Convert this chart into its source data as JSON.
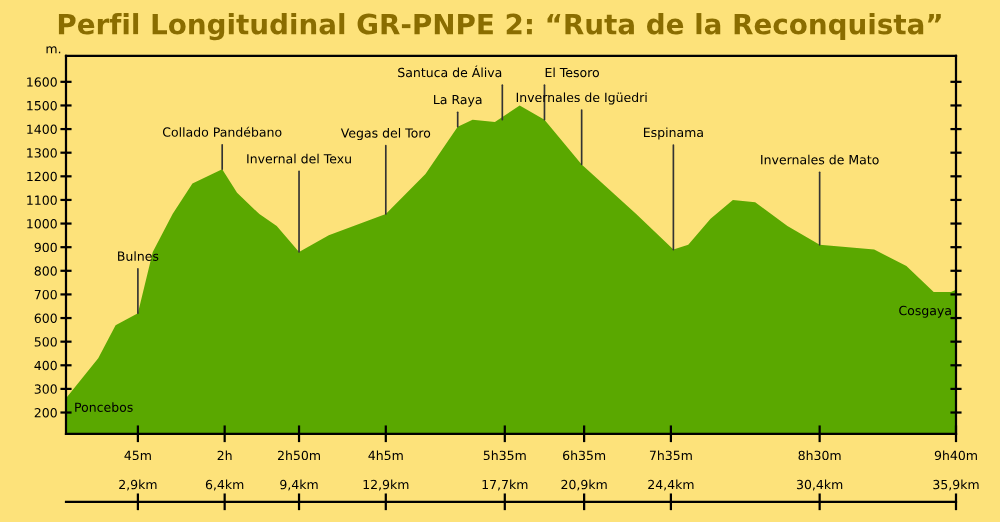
{
  "chart_data": {
    "type": "area",
    "title": "Perfil Longitudinal GR-PNPE 2: “Ruta de la Reconquista”",
    "ylabel": "m.",
    "x": [
      0,
      1.3,
      2.0,
      2.9,
      3.5,
      4.3,
      5.1,
      6.3,
      6.9,
      7.8,
      8.5,
      9.4,
      10.6,
      12.9,
      14.5,
      15.8,
      16.4,
      17.3,
      18.3,
      19.3,
      20.8,
      23.0,
      24.5,
      25.1,
      26.0,
      26.9,
      27.8,
      29.1,
      30.4,
      32.6,
      33.9,
      35.0,
      35.7,
      35.9
    ],
    "series": [
      {
        "color": "#5aa800",
        "values": [
          260,
          430,
          570,
          620,
          880,
          1040,
          1170,
          1230,
          1130,
          1040,
          990,
          880,
          950,
          1040,
          1210,
          1410,
          1440,
          1430,
          1500,
          1440,
          1250,
          1040,
          890,
          910,
          1020,
          1100,
          1090,
          990,
          910,
          890,
          820,
          710,
          710,
          720
        ]
      }
    ],
    "xlim": [
      0,
      35.9
    ],
    "ylim": [
      110,
      1710
    ],
    "yticks": [
      200,
      300,
      400,
      500,
      600,
      700,
      800,
      900,
      1000,
      1100,
      1200,
      1300,
      1400,
      1500,
      1600
    ],
    "xticks": [
      {
        "value": 2.9,
        "label": "2,9km"
      },
      {
        "value": 6.4,
        "label": "6,4km"
      },
      {
        "value": 9.4,
        "label": "9,4km"
      },
      {
        "value": 12.9,
        "label": "12,9km"
      },
      {
        "value": 17.7,
        "label": "17,7km"
      },
      {
        "value": 20.9,
        "label": "20,9km"
      },
      {
        "value": 24.4,
        "label": "24,4km"
      },
      {
        "value": 30.4,
        "label": "30,4km"
      },
      {
        "value": 35.9,
        "label": "35,9km"
      }
    ],
    "annotations": [
      {
        "text": "Poncebos",
        "x": 0,
        "y": 260
      },
      {
        "text": "Bulnes",
        "x": 2.9,
        "y": 620
      },
      {
        "text": "Collado Pandébano",
        "x": 6.3,
        "y": 1230
      },
      {
        "text": "Invernal del Texu",
        "x": 9.4,
        "y": 880
      },
      {
        "text": "Vegas del Toro",
        "x": 12.9,
        "y": 1040
      },
      {
        "text": "La Raya",
        "x": 15.8,
        "y": 1410
      },
      {
        "text": "Santuca de Áliva",
        "x": 17.6,
        "y": 1440
      },
      {
        "text": "El Tesoro",
        "x": 19.3,
        "y": 1440
      },
      {
        "text": "Invernales de Igüedri",
        "x": 20.8,
        "y": 1250
      },
      {
        "text": "Espinama",
        "x": 24.5,
        "y": 890
      },
      {
        "text": "Invernales de Mato",
        "x": 30.4,
        "y": 910
      },
      {
        "text": "Cosgaya",
        "x": 35.9,
        "y": 720
      },
      "45m",
      "2h",
      "2h50m",
      "4h5m",
      "5h35m",
      "6h35m",
      "7h35m",
      "8h30m",
      "9h40m"
    ],
    "grid": false,
    "legend": false
  }
}
